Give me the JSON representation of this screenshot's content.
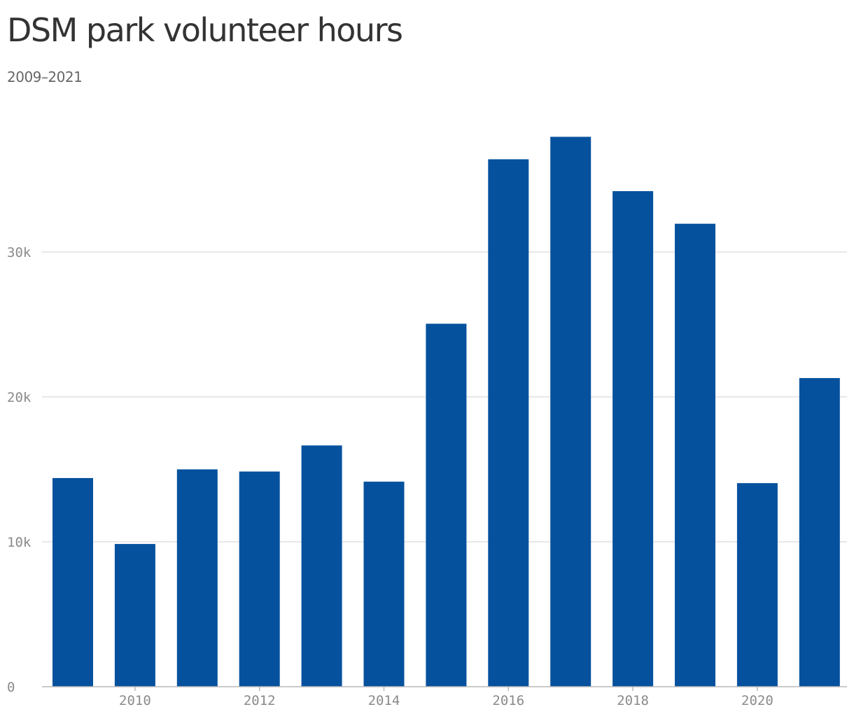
{
  "title": "DSM park volunteer hours",
  "subtitle": "2009–2021",
  "colors": {
    "bar": "#05519E",
    "grid": "#e1e1e1",
    "axis": "#b8b8b8",
    "tick_text": "#8a8a8a"
  },
  "chart_data": {
    "type": "bar",
    "title": "DSM park volunteer hours",
    "subtitle": "2009–2021",
    "xlabel": "",
    "ylabel": "",
    "categories": [
      "2009",
      "2010",
      "2011",
      "2012",
      "2013",
      "2014",
      "2015",
      "2016",
      "2017",
      "2018",
      "2019",
      "2020",
      "2021"
    ],
    "values": [
      14400,
      9850,
      15000,
      14850,
      16650,
      14150,
      25050,
      36400,
      37950,
      34200,
      31950,
      14050,
      21300
    ],
    "x_tick_labels": [
      "2010",
      "2012",
      "2014",
      "2016",
      "2018",
      "2020"
    ],
    "y_ticks": [
      0,
      10000,
      20000,
      30000
    ],
    "y_tick_labels": [
      "0",
      "10k",
      "20k",
      "30k"
    ],
    "ylim": [
      0,
      40000
    ],
    "grid": true,
    "legend": "none"
  }
}
